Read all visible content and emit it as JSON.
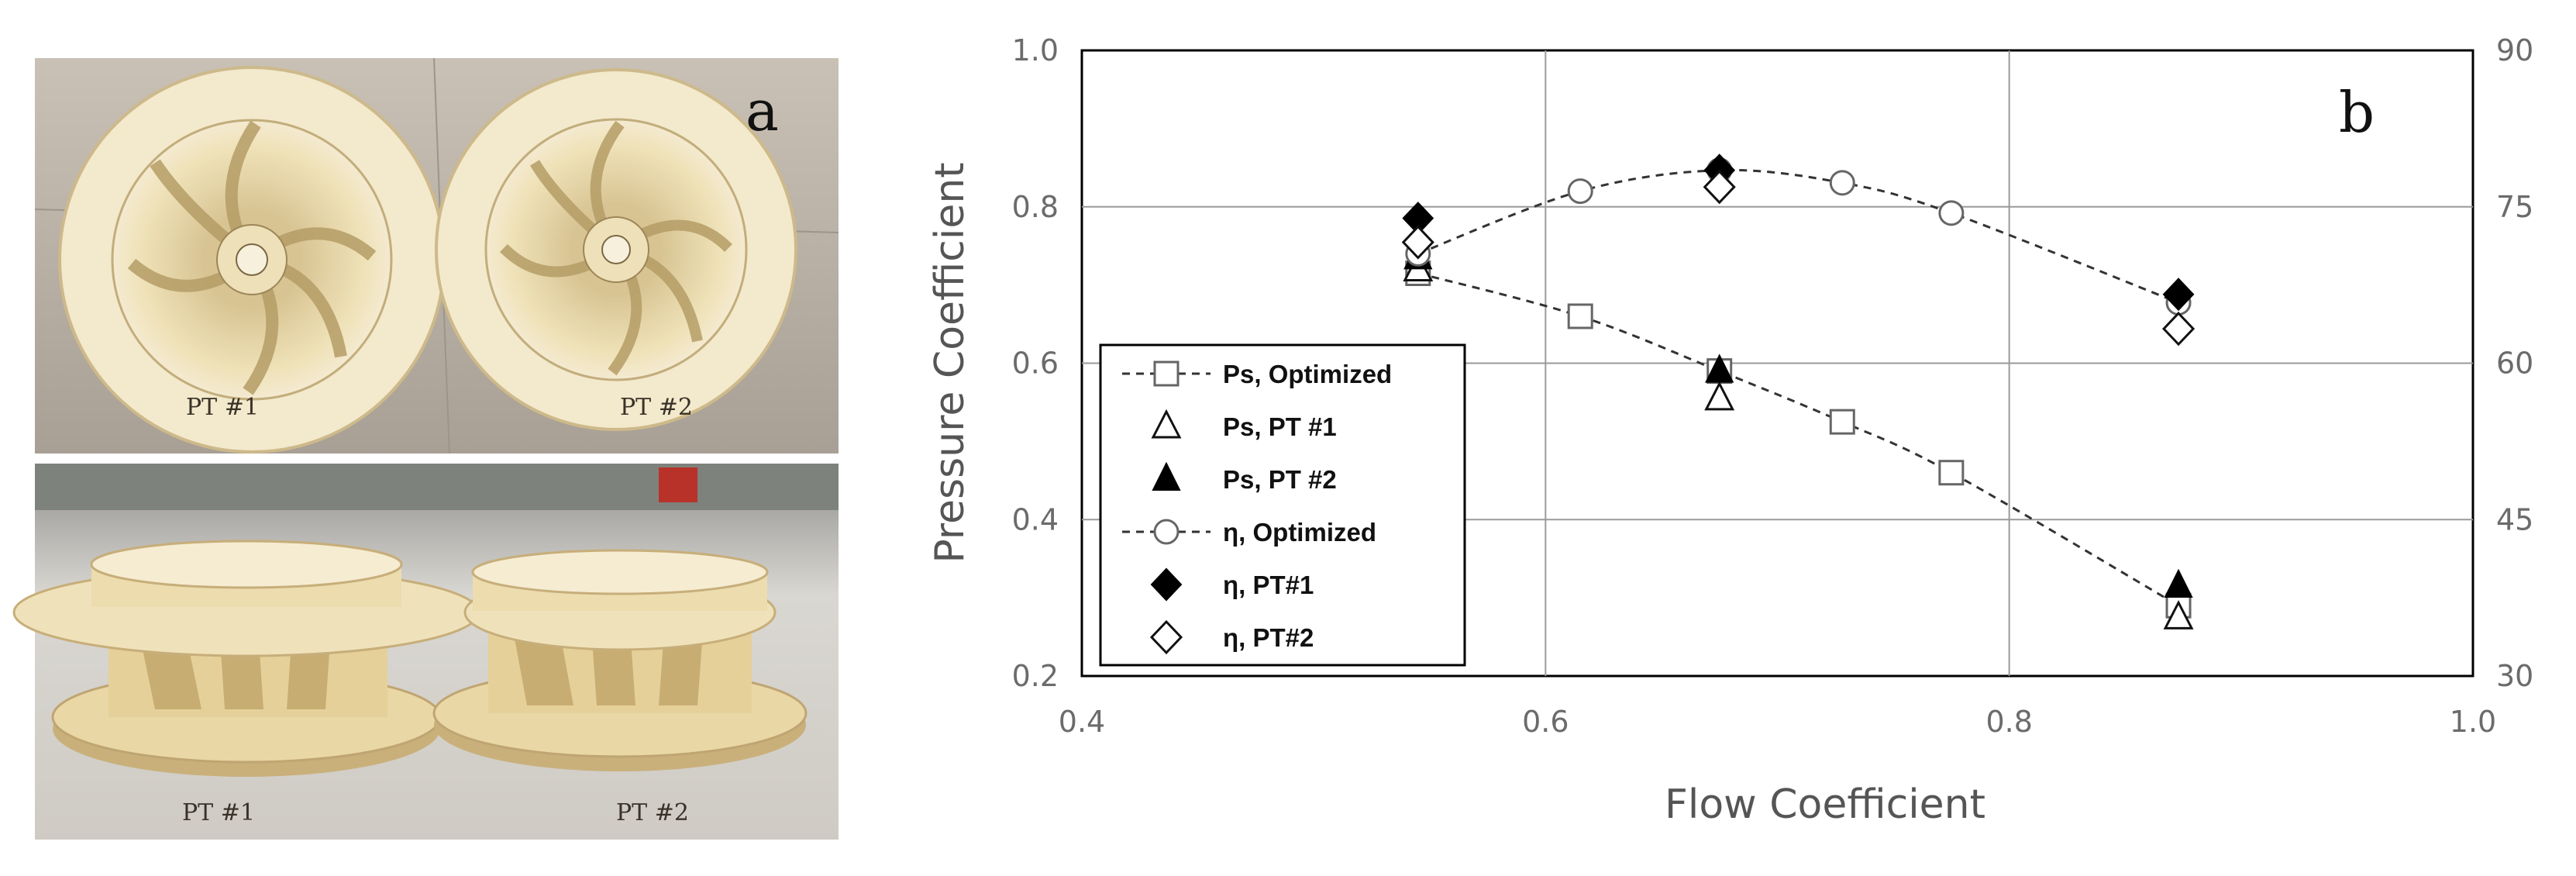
{
  "photos": {
    "panel_label": "a",
    "top": {
      "labels": [
        "PT #1",
        "PT #2"
      ]
    },
    "bottom": {
      "labels": [
        "PT #1",
        "PT #2"
      ]
    }
  },
  "colors": {
    "impeller": "#ecdcae",
    "impeller_shadow": "#c9b585",
    "floor_top": "#b7aea3",
    "floor_bottom": "#d4d2ce",
    "wall_bottom": "#8a8a8a"
  },
  "chart_data": {
    "type": "line",
    "panel_label": "b",
    "xlabel": "Flow Coefficient",
    "ylabel": "Pressure Coefficient",
    "xlim": [
      0.4,
      1.0
    ],
    "ylim": [
      0.2,
      1.0
    ],
    "y2lim": [
      30,
      90
    ],
    "xticks": [
      "0.4",
      "0.6",
      "0.8",
      "1.0"
    ],
    "yticks": [
      "0.2",
      "0.4",
      "0.6",
      "0.8",
      "1.0"
    ],
    "y2ticks": [
      "30",
      "45",
      "60",
      "75",
      "90"
    ],
    "grid": true,
    "legend_position": "lower-left",
    "series": [
      {
        "name": "Ps, Optimized",
        "axis": "left",
        "marker": "square-open",
        "line": "dashed",
        "x": [
          0.545,
          0.615,
          0.675,
          0.728,
          0.775,
          0.873
        ],
        "y": [
          0.715,
          0.66,
          0.59,
          0.525,
          0.46,
          0.29
        ]
      },
      {
        "name": "Ps, PT #1",
        "axis": "left",
        "marker": "triangle-open",
        "line": "none",
        "x": [
          0.545,
          0.675,
          0.873
        ],
        "y": [
          0.72,
          0.555,
          0.275
        ]
      },
      {
        "name": "Ps, PT #2",
        "axis": "left",
        "marker": "triangle-filled",
        "line": "none",
        "x": [
          0.545,
          0.675,
          0.873
        ],
        "y": [
          0.735,
          0.59,
          0.315
        ]
      },
      {
        "name": "η, Optimized",
        "axis": "right",
        "marker": "circle-open",
        "line": "dashed",
        "x": [
          0.545,
          0.615,
          0.675,
          0.728,
          0.775,
          0.873
        ],
        "y": [
          70.5,
          76.5,
          78.5,
          77.3,
          74.4,
          65.8
        ]
      },
      {
        "name": "η, PT#1",
        "axis": "right",
        "marker": "diamond-filled",
        "line": "none",
        "x": [
          0.545,
          0.675,
          0.873
        ],
        "y": [
          73.9,
          78.5,
          66.6
        ]
      },
      {
        "name": "η, PT#2",
        "axis": "right",
        "marker": "diamond-open",
        "line": "none",
        "x": [
          0.545,
          0.675,
          0.873
        ],
        "y": [
          71.6,
          76.9,
          63.3
        ]
      }
    ]
  }
}
